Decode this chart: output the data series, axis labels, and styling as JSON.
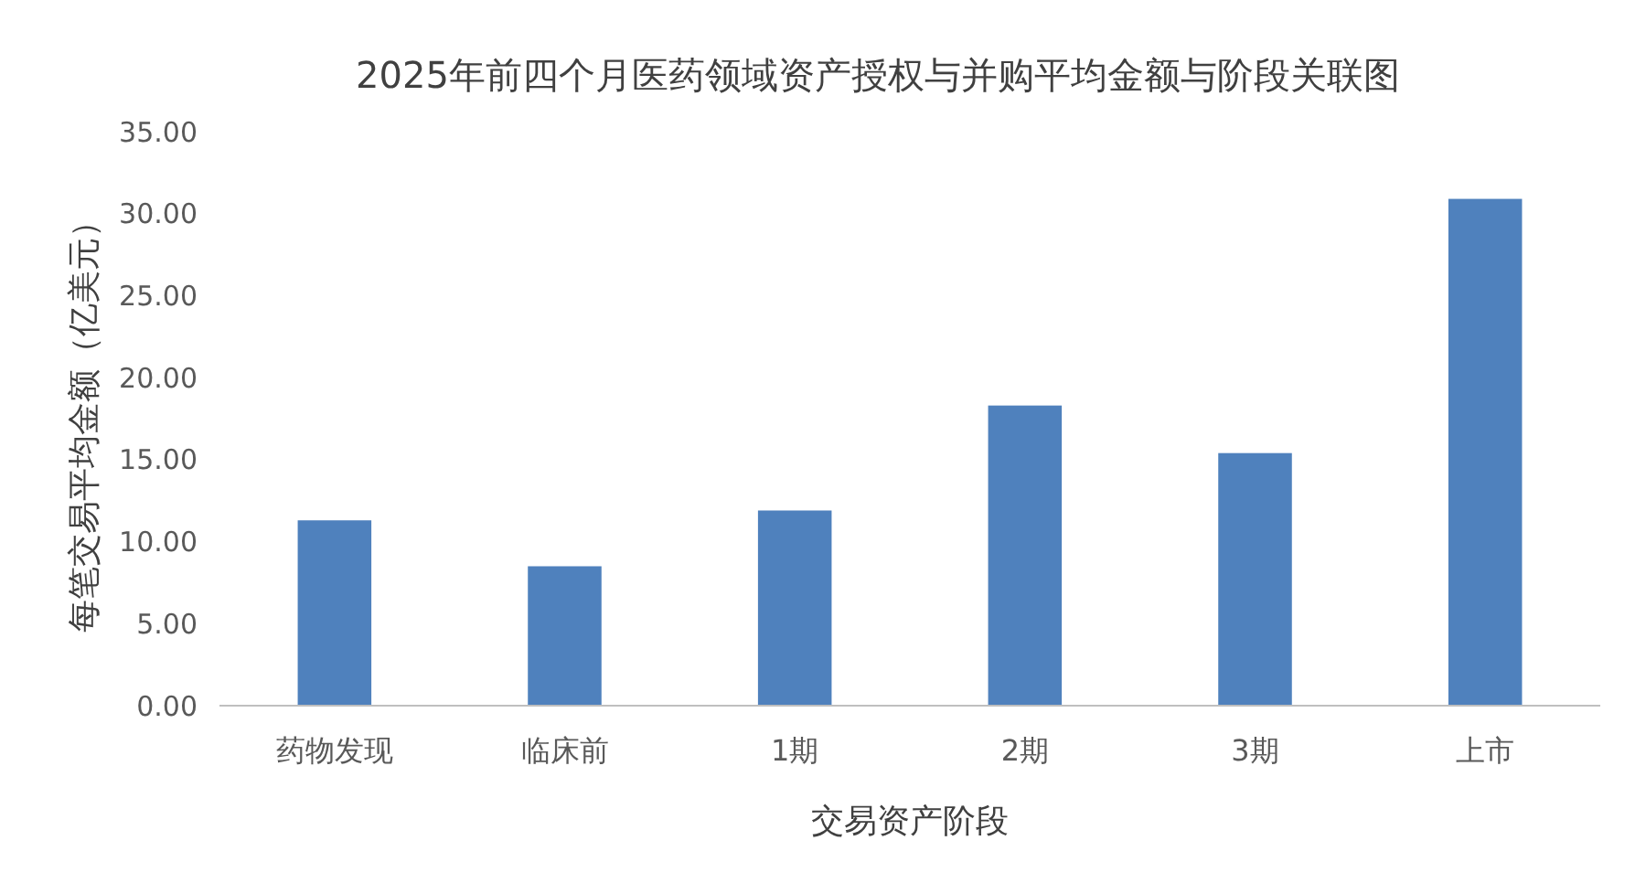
{
  "chart_data": {
    "type": "bar",
    "title": "2025年前四个月医药领域资产授权与并购平均金额与阶段关联图",
    "xlabel": "交易资产阶段",
    "ylabel": "每笔交易平均金额（亿美元）",
    "categories": [
      "药物发现",
      "临床前",
      "1期",
      "2期",
      "3期",
      "上市"
    ],
    "values": [
      11.3,
      8.5,
      11.9,
      18.3,
      15.4,
      30.9
    ],
    "color": "#4f81bd",
    "ylim": [
      0,
      35
    ],
    "yticks": [
      {
        "value": 0,
        "label": "0.00"
      },
      {
        "value": 5,
        "label": "5.00"
      },
      {
        "value": 10,
        "label": "10.00"
      },
      {
        "value": 15,
        "label": "15.00"
      },
      {
        "value": 20,
        "label": "20.00"
      },
      {
        "value": 25,
        "label": "25.00"
      },
      {
        "value": 30,
        "label": "30.00"
      },
      {
        "value": 35,
        "label": "35.00"
      }
    ],
    "grid": false
  }
}
